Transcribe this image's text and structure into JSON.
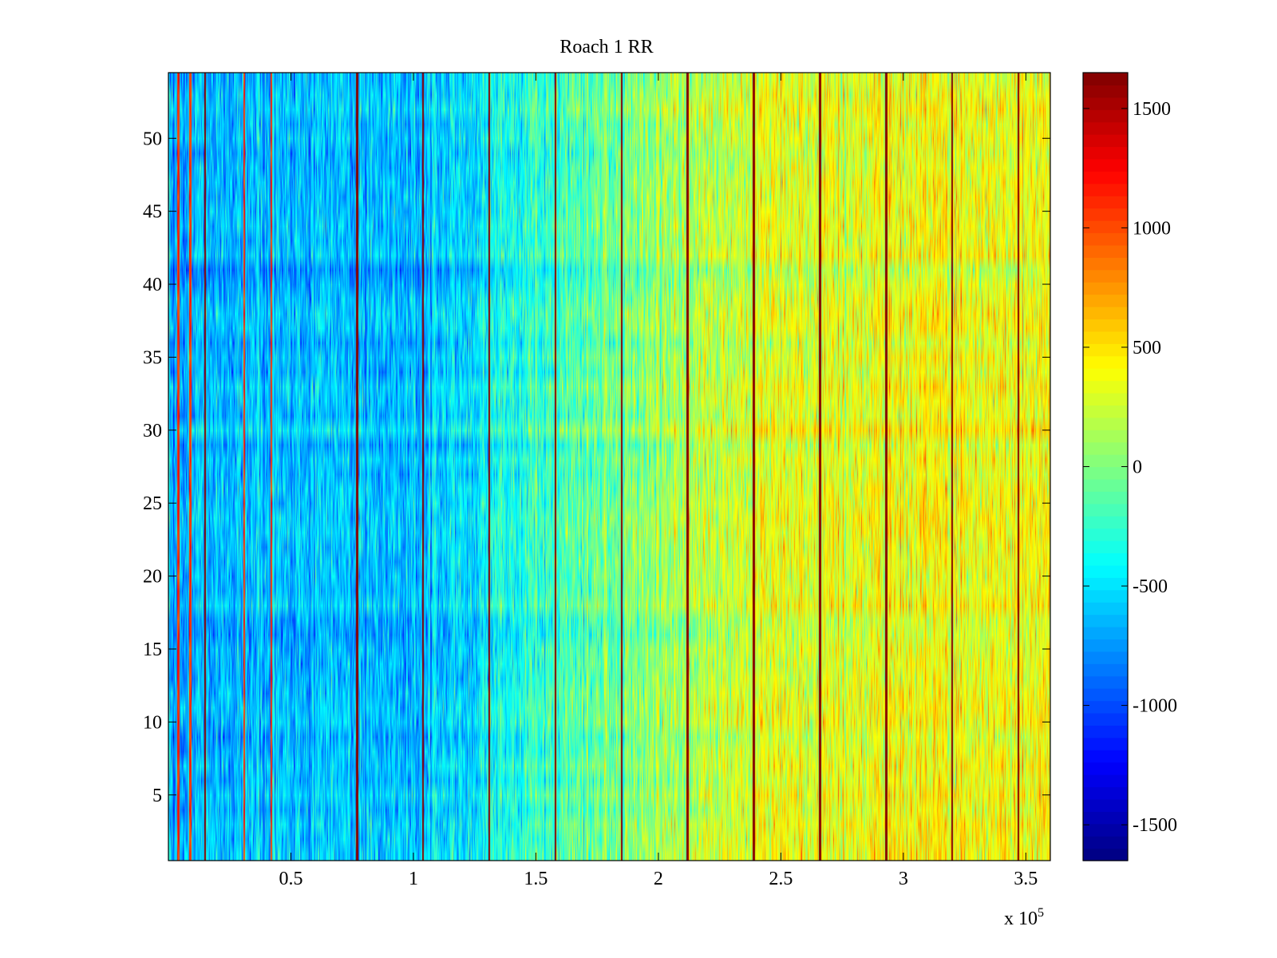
{
  "chart_data": {
    "type": "heatmap",
    "title": "Roach 1 RR",
    "xlabel": "",
    "ylabel": "",
    "x_exponent_label": "x 10",
    "x_exponent_power": "5",
    "x_range": [
      0,
      3.6
    ],
    "y_range": [
      0.5,
      54.5
    ],
    "x_ticks": [
      0.5,
      1,
      1.5,
      2,
      2.5,
      3,
      3.5
    ],
    "x_tick_labels": [
      "0.5",
      "1",
      "1.5",
      "2",
      "2.5",
      "3",
      "3.5"
    ],
    "y_ticks": [
      5,
      10,
      15,
      20,
      25,
      30,
      35,
      40,
      45,
      50
    ],
    "y_tick_labels": [
      "5",
      "10",
      "15",
      "20",
      "25",
      "30",
      "35",
      "40",
      "45",
      "50"
    ],
    "n_rows": 54,
    "colorbar": {
      "colormap": "jet",
      "range": [
        -1650,
        1650
      ],
      "ticks": [
        -1500,
        -1000,
        -500,
        0,
        500,
        1000,
        1500
      ],
      "tick_labels": [
        "-1500",
        "-1000",
        "-500",
        "0",
        "500",
        "1000",
        "1500"
      ]
    },
    "trend_x": [
      0,
      0.5,
      1.0,
      1.5,
      2.0,
      2.5,
      3.0,
      3.6
    ],
    "trend_values": [
      -650,
      -620,
      -620,
      -280,
      80,
      340,
      380,
      400
    ],
    "stripe_x_max": [
      0.15,
      0.77,
      1.04,
      1.31,
      1.58,
      1.85,
      2.12,
      2.39,
      2.66,
      2.93,
      3.2,
      3.47
    ],
    "stripe_x_high": [
      0.04,
      0.31,
      0.42,
      0.09
    ]
  }
}
